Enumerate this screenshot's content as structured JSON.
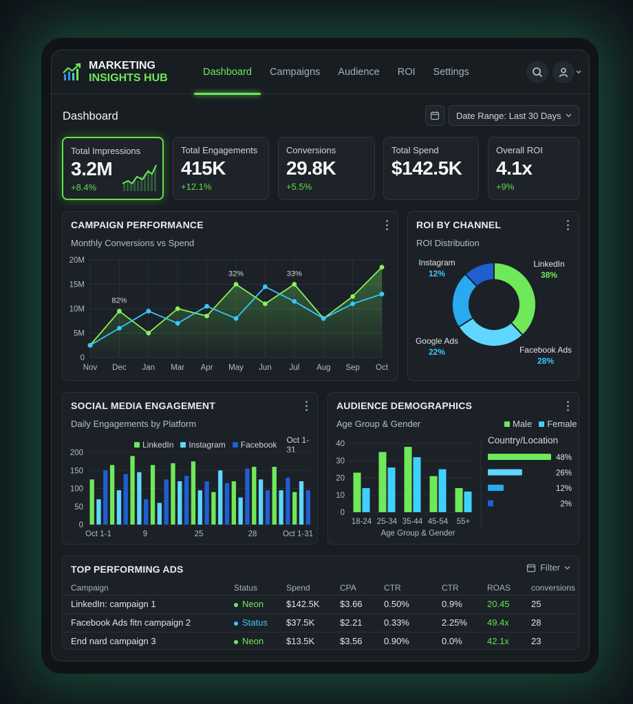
{
  "app": {
    "logo_line1": "MARKETING",
    "logo_line2": "INSIGHTS HUB",
    "nav": [
      "Dashboard",
      "Campaigns",
      "Audience",
      "ROI",
      "Settings"
    ],
    "active_nav": "Dashboard",
    "icons": {
      "search": "search-icon",
      "user": "user-icon",
      "calendar": "calendar-icon",
      "filter": "filter-icon"
    }
  },
  "page": {
    "title": "Dashboard",
    "date_range": "Date Range: Last 30 Days"
  },
  "kpis": [
    {
      "label": "Total Impressions",
      "value": "3.2M",
      "change": "+8.4%"
    },
    {
      "label": "Total Engagements",
      "value": "415K",
      "change": "+12.1%"
    },
    {
      "label": "Conversions",
      "value": "29.8K",
      "change": "+5.5%"
    },
    {
      "label": "Total Spend",
      "value": "$142.5K",
      "change": ""
    },
    {
      "label": "Overall ROI",
      "value": "4.1x",
      "change": "+9%"
    }
  ],
  "colors": {
    "green": "#6fe85a",
    "cyan": "#3fc6ff",
    "blue": "#1f5fd0",
    "light_cyan": "#5fd6ff"
  },
  "campaign_performance": {
    "title": "CAMPAIGN PERFORMANCE",
    "subtitle": "Monthly Conversions vs Spend"
  },
  "roi_by_channel": {
    "title": "ROI BY CHANNEL",
    "subtitle": "ROI Distribution"
  },
  "social_media": {
    "title": "SOCIAL MEDIA ENGAGEMENT",
    "subtitle": "Daily Engagements by Platform",
    "range_label": "Oct 1-31"
  },
  "audience": {
    "title": "AUDIENCE DEMOGRAPHICS",
    "subtitle": "Age Group & Gender",
    "country_title": "Country/Location"
  },
  "top_ads": {
    "title": "TOP PERFORMING ADS",
    "filter_label": "Filter",
    "columns": [
      "Campaign",
      "Status",
      "Spend",
      "CPA",
      "CTR",
      "CTR",
      "ROAS",
      "conversions"
    ],
    "rows": [
      {
        "campaign": "LinkedIn: campaign 1",
        "status": "Neon",
        "status_color": "#6fe85a",
        "spend": "$142.5K",
        "cpa": "$3.66",
        "ctr1": "0.50%",
        "ctr2": "0.9%",
        "roas": "20.45",
        "conversions": "25"
      },
      {
        "campaign": "Facebook Ads fitn campaign 2",
        "status": "Status",
        "status_color": "#3fc6ff",
        "spend": "$37.5K",
        "cpa": "$2.21",
        "ctr1": "0.33%",
        "ctr2": "2.25%",
        "roas": "49.4x",
        "conversions": "28"
      },
      {
        "campaign": "End nard campaign 3",
        "status": "Neon",
        "status_color": "#6fe85a",
        "spend": "$13.5K",
        "cpa": "$3.56",
        "ctr1": "0.90%",
        "ctr2": "0.0%",
        "roas": "42.1x",
        "conversions": "23"
      }
    ]
  },
  "chart_data": [
    {
      "type": "line",
      "title": "CAMPAIGN PERFORMANCE",
      "subtitle": "Monthly Conversions vs Spend",
      "x": [
        "Nov",
        "Dec",
        "Jan",
        "Mar",
        "Apr",
        "May",
        "Jun",
        "Jul",
        "Aug",
        "Sep",
        "Oct"
      ],
      "y_ticks": [
        "0",
        "5M",
        "10M",
        "15M",
        "20M"
      ],
      "ylim": [
        0,
        20
      ],
      "grid": true,
      "series": [
        {
          "values": [
            2.5,
            9.5,
            5,
            10,
            8.5,
            15,
            11,
            15,
            8,
            12.5,
            18.5
          ],
          "color": "#8bf05a",
          "area": true
        },
        {
          "values": [
            2.5,
            6,
            9.5,
            7,
            10.5,
            8,
            14.5,
            11.5,
            8,
            11,
            13
          ],
          "color": "#38c8ff",
          "area": false
        }
      ],
      "annotations": [
        {
          "x": "Dec",
          "text": "82%"
        },
        {
          "x": "May",
          "text": "32%"
        },
        {
          "x": "Jul",
          "text": "33%"
        }
      ]
    },
    {
      "type": "pie",
      "title": "ROI BY CHANNEL",
      "subtitle": "ROI Distribution",
      "donut": true,
      "slices": [
        {
          "label": "LinkedIn",
          "value": 38,
          "text": "38%",
          "color": "#6fe85a"
        },
        {
          "label": "Facebook Ads",
          "value": 28,
          "text": "28%",
          "color": "#5fd6ff"
        },
        {
          "label": "Google Ads",
          "value": 22,
          "text": "22%",
          "color": "#2aa8f0"
        },
        {
          "label": "Instagram",
          "value": 12,
          "text": "12%",
          "color": "#1f5fd0"
        }
      ]
    },
    {
      "type": "bar",
      "title": "SOCIAL MEDIA ENGAGEMENT",
      "subtitle": "Daily Engagements by Platform",
      "legend": [
        "LinkedIn",
        "Instagram",
        "Facebook"
      ],
      "legend_colors": [
        "#6fe85a",
        "#5fd6ff",
        "#1f5fd0"
      ],
      "y_ticks": [
        "0",
        "50",
        "100",
        "150",
        "200"
      ],
      "ylim": [
        0,
        200
      ],
      "x_ticks": [
        "Oct 1-1",
        "9",
        "25",
        "28",
        "Oct 1-31"
      ],
      "values": [
        125,
        70,
        150,
        165,
        95,
        140,
        190,
        145,
        70,
        165,
        60,
        125,
        170,
        120,
        135,
        175,
        95,
        120,
        90,
        150,
        115,
        120,
        75,
        155,
        160,
        125,
        95,
        160,
        95,
        130,
        90,
        120,
        95
      ],
      "series_pattern": [
        0,
        1,
        2
      ]
    },
    {
      "type": "bar",
      "title": "AUDIENCE DEMOGRAPHICS",
      "subtitle": "Age Group & Gender",
      "xlabel": "Age Group & Gender",
      "categories": [
        "18-24",
        "25-34",
        "35-44",
        "45-54",
        "55+"
      ],
      "y_ticks": [
        "0",
        "10",
        "20",
        "30",
        "40"
      ],
      "ylim": [
        0,
        40
      ],
      "series": [
        {
          "name": "Male",
          "values": [
            23,
            35,
            38,
            21,
            14
          ],
          "color": "#6fe85a"
        },
        {
          "name": "Female",
          "values": [
            14,
            26,
            32,
            25,
            12
          ],
          "color": "#3fd0ff"
        }
      ]
    },
    {
      "type": "bar",
      "title": "Country/Location",
      "orientation": "horizontal",
      "values": [
        48,
        26,
        12,
        2
      ],
      "labels": [
        "48%",
        "26%",
        "12%",
        "2%"
      ],
      "colors": [
        "#6fe85a",
        "#5fd6ff",
        "#2aa8f0",
        "#1f5fd0"
      ],
      "xlim": [
        0,
        48
      ]
    }
  ]
}
